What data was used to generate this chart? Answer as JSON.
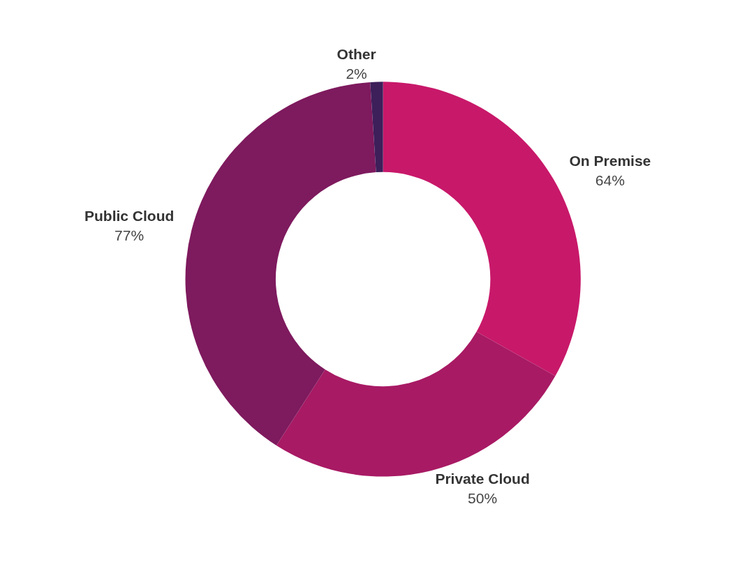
{
  "chart_data": {
    "type": "donut",
    "categories": [
      "On Premise",
      "Private Cloud",
      "Public Cloud",
      "Other"
    ],
    "values": [
      64,
      50,
      77,
      2
    ],
    "value_labels": [
      "64%",
      "50%",
      "77%",
      "2%"
    ],
    "colors": [
      "#c8186a",
      "#a81a64",
      "#7e1a5e",
      "#3d1f5a"
    ],
    "legend": false
  }
}
